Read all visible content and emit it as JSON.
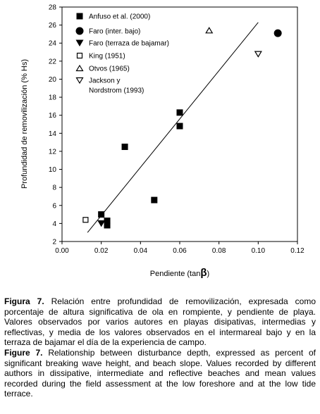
{
  "chart_data": {
    "type": "scatter",
    "xlabel": "Pendiente (tan",
    "xlabel_symbol": "β",
    "xlabel_close": ")",
    "ylabel": "Profundidad de removilización (% Hs)",
    "xlim": [
      0.0,
      0.12
    ],
    "ylim": [
      2,
      28
    ],
    "xticks": [
      0.0,
      0.02,
      0.04,
      0.06,
      0.08,
      0.1,
      0.12
    ],
    "xtick_labels": [
      "0.00",
      "0.02",
      "0.04",
      "0.06",
      "0.08",
      "0.10",
      "0.12"
    ],
    "yticks": [
      2,
      4,
      6,
      8,
      10,
      12,
      14,
      16,
      18,
      20,
      22,
      24,
      26,
      28
    ],
    "ytick_labels": [
      "2",
      "4",
      "6",
      "8",
      "10",
      "12",
      "14",
      "16",
      "18",
      "20",
      "22",
      "24",
      "26",
      "28"
    ],
    "grid": false,
    "legend_position": "top-left",
    "series": [
      {
        "name": "Anfuso et al. (2000)",
        "marker": "filled-square",
        "points": [
          [
            0.02,
            5.0
          ],
          [
            0.023,
            4.3
          ],
          [
            0.023,
            3.8
          ],
          [
            0.032,
            12.5
          ],
          [
            0.047,
            6.6
          ],
          [
            0.06,
            16.3
          ],
          [
            0.06,
            14.8
          ]
        ]
      },
      {
        "name": "Faro (inter. bajo)",
        "marker": "filled-circle",
        "points": [
          [
            0.11,
            25.1
          ]
        ]
      },
      {
        "name": "Faro (terraza de bajamar)",
        "marker": "filled-triangle-down",
        "points": [
          [
            0.02,
            4.0
          ]
        ]
      },
      {
        "name": "King (1951)",
        "marker": "open-square",
        "points": [
          [
            0.012,
            4.4
          ]
        ]
      },
      {
        "name": "Otvos (1965)",
        "marker": "open-triangle-up",
        "points": [
          [
            0.075,
            25.4
          ]
        ]
      },
      {
        "name": "Jackson y Nordstrom (1993)",
        "name_lines": [
          "Jackson y",
          "Nordstrom (1993)"
        ],
        "marker": "open-triangle-down",
        "points": [
          [
            0.1,
            22.8
          ]
        ]
      }
    ],
    "trendline": {
      "x": [
        0.013,
        0.1
      ],
      "y": [
        3.0,
        26.3
      ]
    }
  },
  "caption_es": {
    "label": "Figura 7.",
    "text": " Relación entre profundidad de removilización, expresada como porcentaje de altura significativa de ola en rompiente, y pendiente de playa. Valores observados por varios autores en playas disipativas, intermedias y reflectivas, y media de los valores observados en el intermareal bajo y en la terraza de bajamar el día de la experiencia de campo."
  },
  "caption_en": {
    "label": "Figure 7.",
    "text": " Relationship between disturbance depth, expressed as percent of significant breaking wave height, and beach slope. Values recorded by different authors in dissipative, intermediate and reflective beaches and mean values recorded during the field assessment at the low foreshore and at the low tide terrace."
  }
}
